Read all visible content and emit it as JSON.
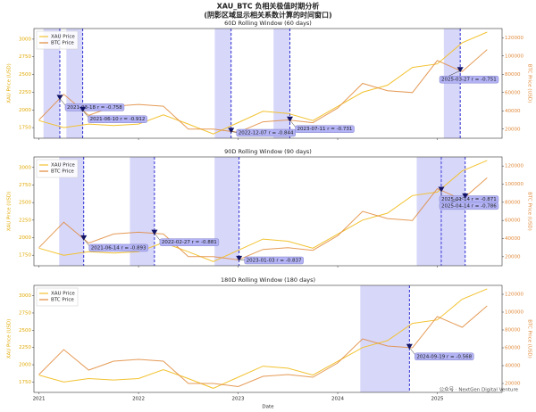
{
  "figure": {
    "title": "XAU_BTC 负相关极值时期分析",
    "subtitle": "(阴影区域显示相关系数计算的时间窗口)",
    "watermark": "公众号 · NextGen Digital Venture"
  },
  "chart_data": [
    {
      "type": "line",
      "title": "60D Rolling Window (60 days)",
      "window_days": 60,
      "shade_color": "#7b7bf0",
      "x": [
        2021.0,
        2021.25,
        2021.5,
        2021.75,
        2022.0,
        2022.25,
        2022.5,
        2022.75,
        2023.0,
        2023.25,
        2023.5,
        2023.75,
        2024.0,
        2024.25,
        2024.5,
        2024.75,
        2025.0,
        2025.25,
        2025.5
      ],
      "series": [
        {
          "name": "XAU Price",
          "color": "#f2c230",
          "axis": "y",
          "values": [
            1850,
            1750,
            1800,
            1780,
            1800,
            1930,
            1800,
            1660,
            1820,
            1980,
            1950,
            1850,
            2050,
            2250,
            2350,
            2600,
            2650,
            2950,
            3100
          ]
        },
        {
          "name": "BTC Price",
          "color": "#e0893a",
          "axis": "y2",
          "values": [
            30000,
            58000,
            35000,
            45000,
            47000,
            45000,
            20000,
            20000,
            16500,
            28000,
            30000,
            27000,
            43000,
            70000,
            62000,
            60000,
            95000,
            83000,
            107000
          ]
        }
      ],
      "xlim": [
        2020.95,
        2025.65
      ],
      "xticks": [
        2021,
        2022,
        2023,
        2024,
        2025
      ],
      "ylim": [
        1600,
        3150
      ],
      "yticks": [
        1750,
        2000,
        2250,
        2500,
        2750,
        3000
      ],
      "y2lim": [
        10000,
        130000
      ],
      "y2ticks": [
        20000,
        40000,
        60000,
        80000,
        100000,
        120000
      ],
      "ylabel": "XAU Price (USD)",
      "y2label": "BTC Price (USD)",
      "legend": "upper left",
      "windows": [
        {
          "x": 2021.21,
          "label": "2021-03-18 r = -0.758"
        },
        {
          "x": 2021.44,
          "label": "2021-06-10 r = -0.912"
        },
        {
          "x": 2022.93,
          "label": "2022-12-07 r = -0.844"
        },
        {
          "x": 2023.52,
          "label": "2023-07-11 r = -0.731"
        },
        {
          "x": 2025.23,
          "label": "2025-03-27 r = -0.751"
        }
      ]
    },
    {
      "type": "line",
      "title": "90D Rolling Window (90 days)",
      "window_days": 90,
      "shade_color": "#7b7bf0",
      "x": [
        2021.0,
        2021.25,
        2021.5,
        2021.75,
        2022.0,
        2022.25,
        2022.5,
        2022.75,
        2023.0,
        2023.25,
        2023.5,
        2023.75,
        2024.0,
        2024.25,
        2024.5,
        2024.75,
        2025.0,
        2025.25,
        2025.5
      ],
      "series": [
        {
          "name": "XAU Price",
          "color": "#f2c230",
          "axis": "y",
          "values": [
            1850,
            1750,
            1800,
            1780,
            1800,
            1930,
            1800,
            1660,
            1820,
            1980,
            1950,
            1850,
            2050,
            2250,
            2350,
            2600,
            2650,
            2950,
            3100
          ]
        },
        {
          "name": "BTC Price",
          "color": "#e0893a",
          "axis": "y2",
          "values": [
            30000,
            58000,
            35000,
            45000,
            47000,
            45000,
            20000,
            20000,
            16500,
            28000,
            30000,
            27000,
            43000,
            70000,
            62000,
            60000,
            95000,
            83000,
            107000
          ]
        }
      ],
      "xlim": [
        2020.95,
        2025.65
      ],
      "xticks": [
        2021,
        2022,
        2023,
        2024,
        2025
      ],
      "ylim": [
        1600,
        3150
      ],
      "yticks": [
        1750,
        2000,
        2250,
        2500,
        2750,
        3000
      ],
      "y2lim": [
        10000,
        130000
      ],
      "y2ticks": [
        20000,
        40000,
        60000,
        80000,
        100000,
        120000
      ],
      "ylabel": "XAU Price (USD)",
      "y2label": "BTC Price (USD)",
      "legend": "upper left",
      "windows": [
        {
          "x": 2021.45,
          "label": "2021-06-14 r = -0.893"
        },
        {
          "x": 2022.16,
          "label": "2022-02-27 r = -0.881"
        },
        {
          "x": 2023.01,
          "label": "2023-01-03 r = -0.837"
        },
        {
          "x": 2025.04,
          "label": "2025-01-14 r = -0.871"
        },
        {
          "x": 2025.28,
          "label": "2025-04-14 r = -0.786"
        }
      ]
    },
    {
      "type": "line",
      "title": "180D Rolling Window (180 days)",
      "window_days": 180,
      "shade_color": "#7b7bf0",
      "x": [
        2021.0,
        2021.25,
        2021.5,
        2021.75,
        2022.0,
        2022.25,
        2022.5,
        2022.75,
        2023.0,
        2023.25,
        2023.5,
        2023.75,
        2024.0,
        2024.25,
        2024.5,
        2024.75,
        2025.0,
        2025.25,
        2025.5
      ],
      "series": [
        {
          "name": "XAU Price",
          "color": "#f2c230",
          "axis": "y",
          "values": [
            1850,
            1750,
            1800,
            1780,
            1800,
            1930,
            1800,
            1660,
            1820,
            1980,
            1950,
            1850,
            2050,
            2250,
            2350,
            2600,
            2650,
            2950,
            3100
          ]
        },
        {
          "name": "BTC Price",
          "color": "#e0893a",
          "axis": "y2",
          "values": [
            30000,
            58000,
            35000,
            45000,
            47000,
            45000,
            20000,
            20000,
            16500,
            28000,
            30000,
            27000,
            43000,
            70000,
            62000,
            60000,
            95000,
            83000,
            107000
          ]
        }
      ],
      "xlim": [
        2020.95,
        2025.65
      ],
      "xticks": [
        2021,
        2022,
        2023,
        2024,
        2025
      ],
      "xlabel": "Date",
      "ylim": [
        1600,
        3150
      ],
      "yticks": [
        1750,
        2000,
        2250,
        2500,
        2750,
        3000
      ],
      "y2lim": [
        10000,
        130000
      ],
      "y2ticks": [
        20000,
        40000,
        60000,
        80000,
        100000,
        120000
      ],
      "ylabel": "XAU Price (USD)",
      "y2label": "BTC Price (USD)",
      "legend": "upper left",
      "windows": [
        {
          "x": 2024.72,
          "label": "2024-09-19 r = -0.568"
        }
      ]
    }
  ]
}
